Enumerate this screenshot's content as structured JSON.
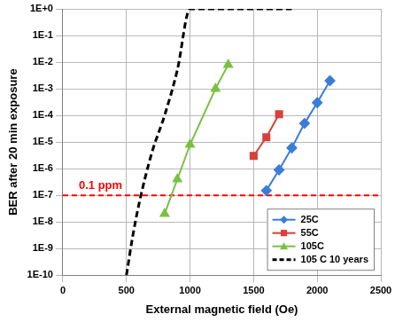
{
  "chart_data": {
    "type": "line",
    "x_label": "External magnetic field (Oe)",
    "y_label": "BER after 20 min exposure",
    "xlim": [
      0,
      2500
    ],
    "xticks": [
      0,
      500,
      1000,
      1500,
      2000,
      2500
    ],
    "ylim": [
      1e-10,
      1
    ],
    "yticks": [
      {
        "value": 1e-10,
        "label": "1E-10"
      },
      {
        "value": 1e-09,
        "label": "1E-9"
      },
      {
        "value": 1e-08,
        "label": "1E-8"
      },
      {
        "value": 1e-07,
        "label": "1E-7"
      },
      {
        "value": 1e-06,
        "label": "1E-6"
      },
      {
        "value": 1e-05,
        "label": "1E-5"
      },
      {
        "value": 0.0001,
        "label": "1E-4"
      },
      {
        "value": 0.001,
        "label": "1E-3"
      },
      {
        "value": 0.01,
        "label": "1E-2"
      },
      {
        "value": 0.1,
        "label": "1E-1"
      },
      {
        "value": 1,
        "label": "1E+0"
      }
    ],
    "log": "y",
    "grid": true,
    "legend": "lower right",
    "series": [
      {
        "name": "25C",
        "color": "#3b7dd8",
        "marker": "diamond",
        "line_style": "solid",
        "x": [
          1600,
          1700,
          1800,
          1900,
          2000,
          2100
        ],
        "values": [
          1.5e-07,
          9e-07,
          6e-06,
          5e-05,
          0.0003,
          0.002
        ]
      },
      {
        "name": "55C",
        "color": "#d9403a",
        "marker": "square",
        "line_style": "solid",
        "x": [
          1500,
          1600,
          1700
        ],
        "values": [
          3e-06,
          1.5e-05,
          0.00011
        ]
      },
      {
        "name": "105C",
        "color": "#7ac143",
        "marker": "triangle",
        "line_style": "solid",
        "x": [
          800,
          900,
          1000,
          1200,
          1300
        ],
        "values": [
          2e-08,
          4e-07,
          8e-06,
          0.001,
          0.008
        ]
      },
      {
        "name": "105 C 10 years",
        "color": "#000000",
        "marker": "none",
        "line_style": "dashed",
        "x": [
          500,
          550,
          600,
          700,
          800,
          900,
          1000,
          1800
        ],
        "values": [
          1e-10,
          3e-09,
          5e-08,
          4e-06,
          0.0001,
          0.005,
          1,
          1
        ]
      }
    ],
    "annotations": [
      {
        "text": "0.1 ppm",
        "value": 1e-07,
        "color": "#ff0000",
        "line_style": "dashed"
      }
    ]
  }
}
